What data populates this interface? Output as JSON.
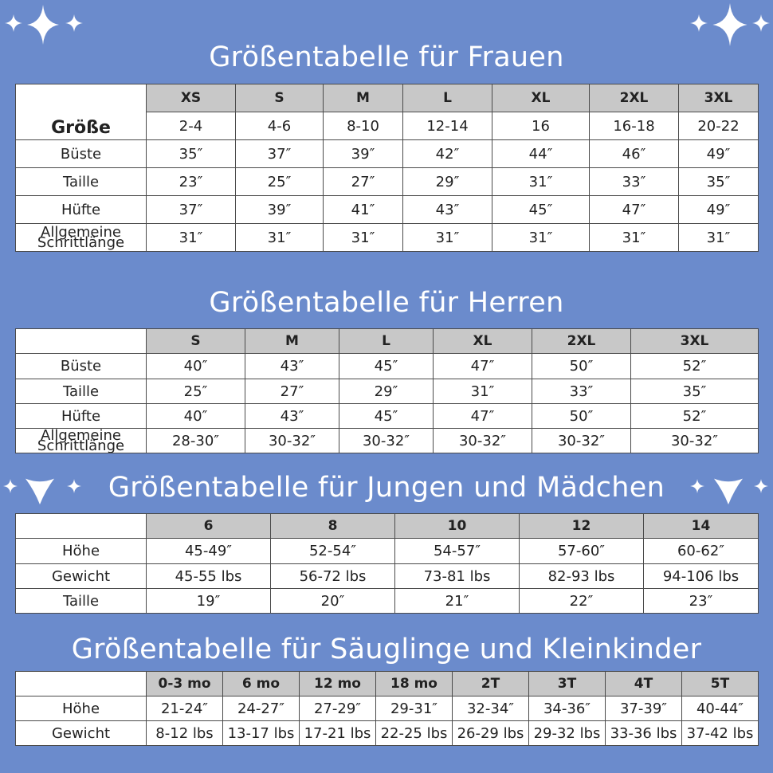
{
  "women": {
    "title": "Größentabelle für Frauen",
    "size_label": "Größe",
    "sizes": [
      "XS",
      "S",
      "M",
      "L",
      "XL",
      "2XL",
      "3XL"
    ],
    "numbers": [
      "2-4",
      "4-6",
      "8-10",
      "12-14",
      "16",
      "16-18",
      "20-22"
    ],
    "rows": [
      {
        "label": "Büste",
        "values": [
          "35″",
          "37″",
          "39″",
          "42″",
          "44″",
          "46″",
          "49″"
        ]
      },
      {
        "label": "Taille",
        "values": [
          "23″",
          "25″",
          "27″",
          "29″",
          "31″",
          "33″",
          "35″"
        ]
      },
      {
        "label": "Hüfte",
        "values": [
          "37″",
          "39″",
          "41″",
          "43″",
          "45″",
          "47″",
          "49″"
        ]
      },
      {
        "label_line1": "Allgemeine",
        "label_line2": "Schrittlänge",
        "values": [
          "31″",
          "31″",
          "31″",
          "31″",
          "31″",
          "31″",
          "31″"
        ]
      }
    ]
  },
  "men": {
    "title": "Größentabelle für Herren",
    "sizes": [
      "S",
      "M",
      "L",
      "XL",
      "2XL",
      "3XL"
    ],
    "rows": [
      {
        "label": "Büste",
        "values": [
          "40″",
          "43″",
          "45″",
          "47″",
          "50″",
          "52″"
        ]
      },
      {
        "label": "Taille",
        "values": [
          "25″",
          "27″",
          "29″",
          "31″",
          "33″",
          "35″"
        ]
      },
      {
        "label": "Hüfte",
        "values": [
          "40″",
          "43″",
          "45″",
          "47″",
          "50″",
          "52″"
        ]
      },
      {
        "label_line1": "Allgemeine",
        "label_line2": "Schrittlänge",
        "values": [
          "28-30″",
          "30-32″",
          "30-32″",
          "30-32″",
          "30-32″",
          "30-32″"
        ]
      }
    ]
  },
  "kids": {
    "title": "Größentabelle für Jungen und Mädchen",
    "sizes": [
      "6",
      "8",
      "10",
      "12",
      "14"
    ],
    "rows": [
      {
        "label": "Höhe",
        "values": [
          "45-49″",
          "52-54″",
          "54-57″",
          "57-60″",
          "60-62″"
        ]
      },
      {
        "label": "Gewicht",
        "values": [
          "45-55 lbs",
          "56-72 lbs",
          "73-81 lbs",
          "82-93 lbs",
          "94-106 lbs"
        ]
      },
      {
        "label": "Taille",
        "values": [
          "19″",
          "20″",
          "21″",
          "22″",
          "23″"
        ]
      }
    ]
  },
  "baby": {
    "title": "Größentabelle für Säuglinge und Kleinkinder",
    "sizes": [
      "0-3 mo",
      "6 mo",
      "12 mo",
      "18 mo",
      "2T",
      "3T",
      "4T",
      "5T"
    ],
    "rows": [
      {
        "label": "Höhe",
        "values": [
          "21-24″",
          "24-27″",
          "27-29″",
          "29-31″",
          "32-34″",
          "34-36″",
          "37-39″",
          "40-44″"
        ]
      },
      {
        "label": "Gewicht",
        "values": [
          "8-12 lbs",
          "13-17 lbs",
          "17-21 lbs",
          "22-25 lbs",
          "26-29 lbs",
          "29-32 lbs",
          "33-36 lbs",
          "37-42 lbs"
        ]
      }
    ]
  },
  "colors": {
    "background": "#6b8bcc",
    "header": "#c8c8c8",
    "text": "#222222",
    "title": "#ffffff"
  },
  "icons": [
    "sparkle-icon"
  ]
}
